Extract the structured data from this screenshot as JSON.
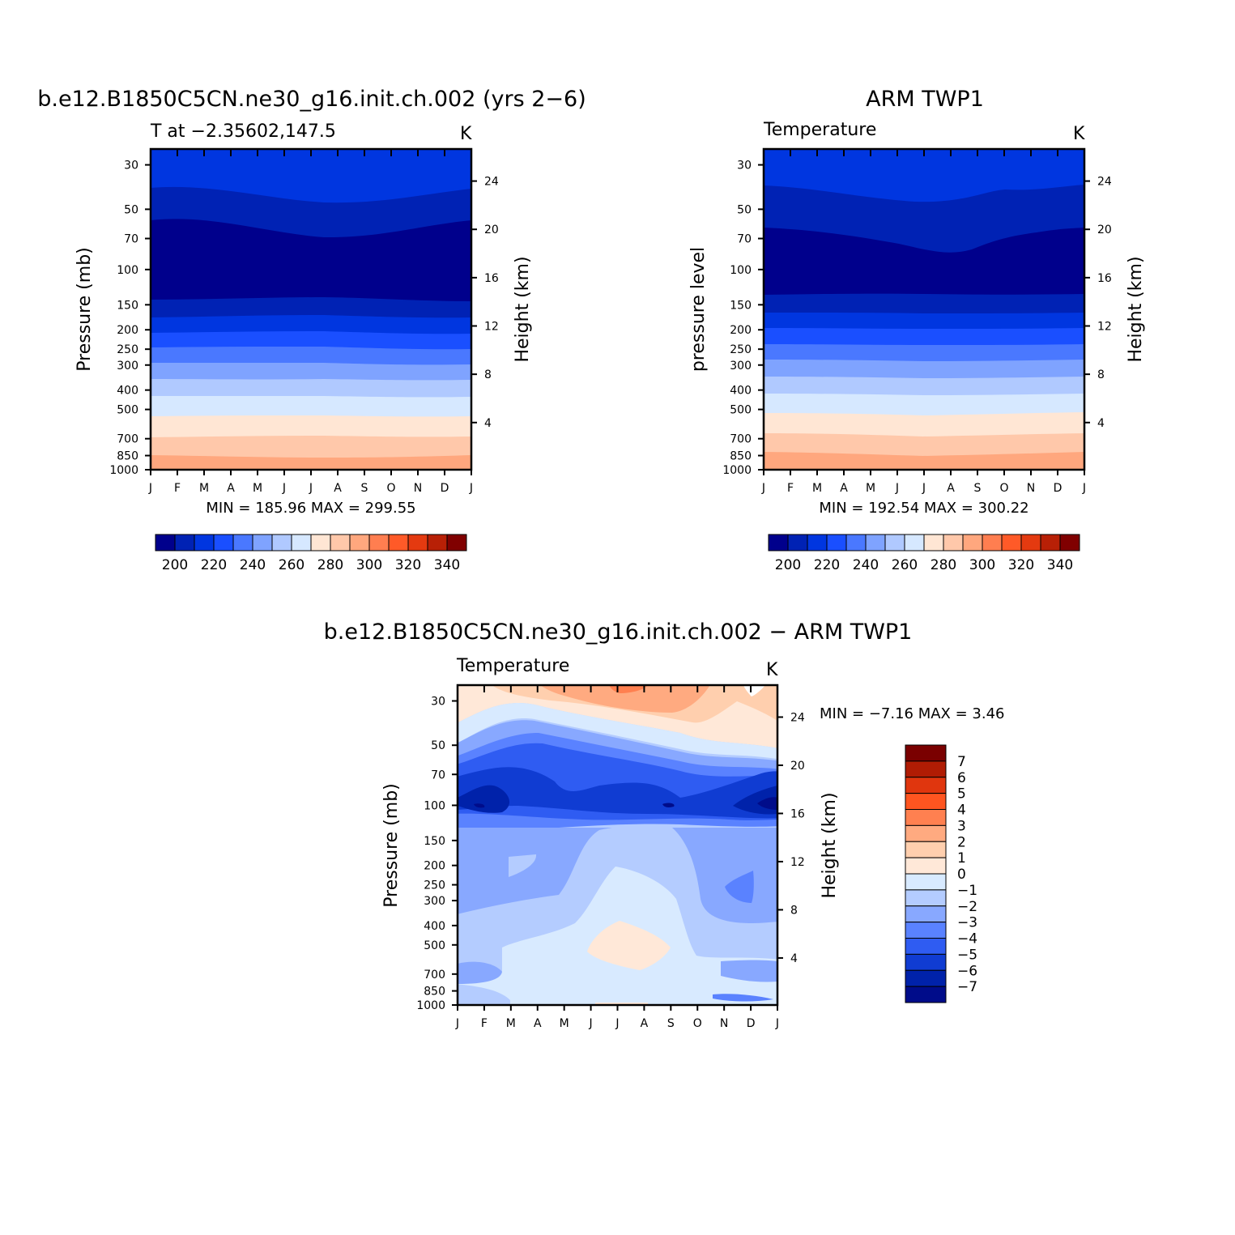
{
  "figure": {
    "months": [
      "J",
      "F",
      "M",
      "A",
      "M",
      "J",
      "J",
      "A",
      "S",
      "O",
      "N",
      "D",
      "J"
    ],
    "pressure_ticks": [
      30,
      50,
      70,
      100,
      150,
      200,
      250,
      300,
      400,
      500,
      700,
      850,
      1000
    ],
    "height_ticks": [
      24,
      20,
      16,
      12,
      8,
      4
    ]
  },
  "chart_data": [
    {
      "type": "heatmap",
      "title": "b.e12.B1850C5CN.ne30_g16.init.ch.002 (yrs 2−6)",
      "subtitle": "T at −2.35602,147.5",
      "units": "K",
      "ylabel": "Pressure (mb)",
      "ylabel_right": "Height (km)",
      "x": [
        "J",
        "F",
        "M",
        "A",
        "M",
        "J",
        "J",
        "A",
        "S",
        "O",
        "N",
        "D",
        "J"
      ],
      "yscale": "log",
      "ylim": [
        1000,
        25
      ],
      "min_max_text": "MIN = 185.96 MAX = 299.55",
      "min": 185.96,
      "max": 299.55,
      "contour_levels": [
        195,
        200,
        205,
        210,
        215,
        220,
        225,
        230,
        235,
        240,
        245,
        250,
        255,
        260,
        265,
        270,
        275,
        280,
        285,
        290,
        295,
        300,
        305,
        310,
        315,
        320,
        325,
        330,
        335,
        340,
        345
      ],
      "colorbar_ticks": [
        200,
        220,
        240,
        260,
        280,
        300,
        320,
        340
      ],
      "colorbar_colors": [
        "#00008c",
        "#0022b4",
        "#0036e0",
        "#1a4fff",
        "#4a78ff",
        "#7fa3ff",
        "#b0c9ff",
        "#d6e8ff",
        "#ffe6d4",
        "#ffc8aa",
        "#ffa77e",
        "#ff7e50",
        "#ff5a28",
        "#e43a10",
        "#b82006",
        "#800000"
      ]
    },
    {
      "type": "heatmap",
      "title": "ARM TWP1",
      "subtitle": "Temperature",
      "units": "K",
      "ylabel": "pressure level",
      "ylabel_right": "Height (km)",
      "x": [
        "J",
        "F",
        "M",
        "A",
        "M",
        "J",
        "J",
        "A",
        "S",
        "O",
        "N",
        "D",
        "J"
      ],
      "yscale": "log",
      "ylim": [
        1000,
        25
      ],
      "min_max_text": "MIN = 192.54 MAX = 300.22",
      "min": 192.54,
      "max": 300.22,
      "colorbar_ticks": [
        200,
        220,
        240,
        260,
        280,
        300,
        320,
        340
      ],
      "colorbar_colors": [
        "#00008c",
        "#0022b4",
        "#0036e0",
        "#1a4fff",
        "#4a78ff",
        "#7fa3ff",
        "#b0c9ff",
        "#d6e8ff",
        "#ffe6d4",
        "#ffc8aa",
        "#ffa77e",
        "#ff7e50",
        "#ff5a28",
        "#e43a10",
        "#b82006",
        "#800000"
      ]
    },
    {
      "type": "heatmap",
      "title": "b.e12.B1850C5CN.ne30_g16.init.ch.002 − ARM TWP1",
      "subtitle": "Temperature",
      "units": "K",
      "ylabel": "Pressure (mb)",
      "ylabel_right": "Height (km)",
      "x": [
        "J",
        "F",
        "M",
        "A",
        "M",
        "J",
        "J",
        "A",
        "S",
        "O",
        "N",
        "D",
        "J"
      ],
      "yscale": "log",
      "ylim": [
        1000,
        25
      ],
      "min_max_text": "MIN = −7.16 MAX = 3.46",
      "min": -7.16,
      "max": 3.46,
      "colorbar_ticks": [
        "7",
        "6",
        "5",
        "4",
        "3",
        "2",
        "1",
        "0",
        "−1",
        "−2",
        "−3",
        "−4",
        "−5",
        "−6",
        "−7"
      ],
      "colorbar_colors": [
        "#7a0000",
        "#b01c04",
        "#e0360e",
        "#ff5520",
        "#ff8050",
        "#ffaa80",
        "#ffcfae",
        "#ffe8d8",
        "#d8eaff",
        "#b4ccff",
        "#88a8ff",
        "#5a82ff",
        "#2f5cf2",
        "#103cd2",
        "#0022aa",
        "#000c8a"
      ]
    }
  ]
}
